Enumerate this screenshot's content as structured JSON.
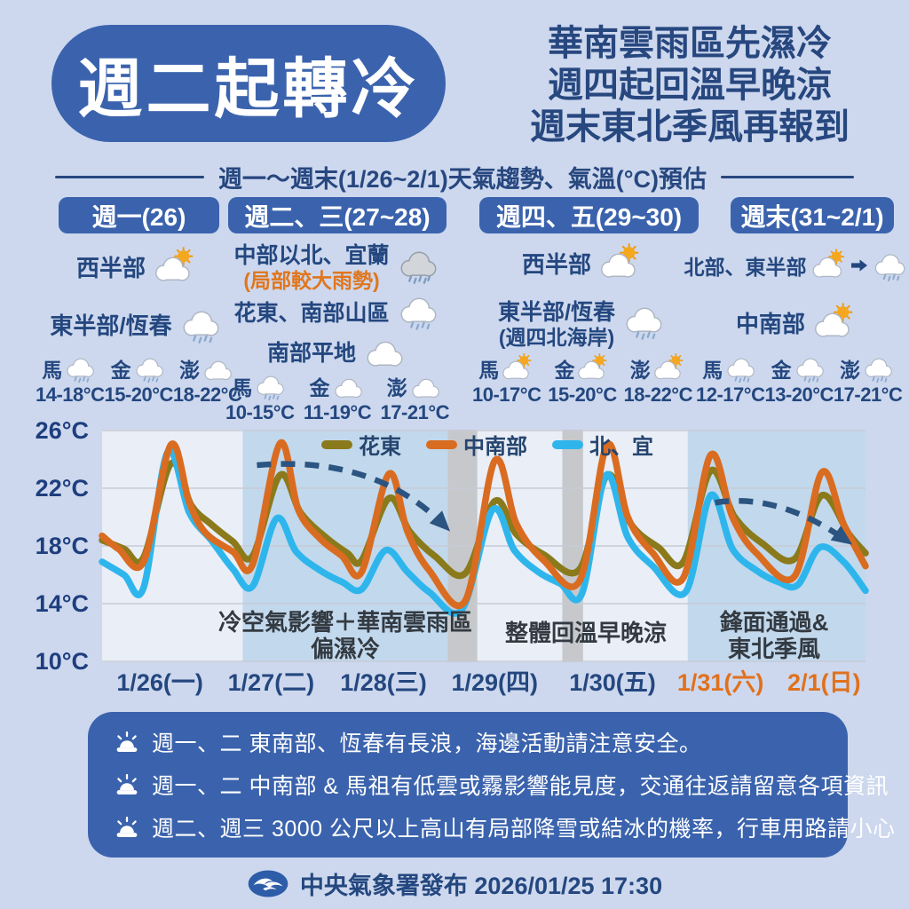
{
  "header": {
    "title": "週二起轉冷",
    "headline_lines": [
      "華南雲雨區先濕冷",
      "週四起回溫早晚涼",
      "週末東北季風再報到"
    ],
    "subtitle": "週一～週末(1/26~2/1)天氣趨勢、氣溫(°C)預估"
  },
  "columns": [
    {
      "header": "週一(26)",
      "rows": [
        {
          "label": "西半部",
          "icon": "sun-cloud-icon"
        },
        {
          "label": "東半部/恆春",
          "icon": "cloud-rain-icon"
        }
      ],
      "islands": [
        {
          "name": "馬",
          "icon": "cloud-rain-icon",
          "temp": "14-18°C"
        },
        {
          "name": "金",
          "icon": "cloud-rain-icon",
          "temp": "15-20°C"
        },
        {
          "name": "澎",
          "icon": "cloud-icon",
          "temp": "18-22°C"
        }
      ]
    },
    {
      "header": "週二、三(27~28)",
      "rows": [
        {
          "label": "中部以北、宜蘭",
          "sublabel": "(局部較大雨勢)",
          "sublabel_color": "#e0761d",
          "icon": "cloud-heavy-rain-icon"
        },
        {
          "label": "花東、南部山區",
          "icon": "cloud-rain-icon"
        },
        {
          "label": "南部平地",
          "icon": "cloud-icon"
        }
      ],
      "islands": [
        {
          "name": "馬",
          "icon": "cloud-rain-icon",
          "temp": "10-15°C"
        },
        {
          "name": "金",
          "icon": "cloud-icon",
          "temp": "11-19°C"
        },
        {
          "name": "澎",
          "icon": "cloud-icon",
          "temp": "17-21°C"
        }
      ]
    },
    {
      "header": "週四、五(29~30)",
      "rows": [
        {
          "label": "西半部",
          "icon": "sun-cloud-icon"
        },
        {
          "label": "東半部/恆春",
          "sublabel": "(週四北海岸)",
          "sublabel_color": "#24477f",
          "icon": "cloud-rain-icon"
        }
      ],
      "islands": [
        {
          "name": "馬",
          "icon": "sun-cloud-icon",
          "temp": "10-17°C"
        },
        {
          "name": "金",
          "icon": "sun-cloud-icon",
          "temp": "15-20°C"
        },
        {
          "name": "澎",
          "icon": "sun-cloud-icon",
          "temp": "18-22°C"
        }
      ]
    },
    {
      "header": "週末(31~2/1)",
      "rows": [
        {
          "label": "北部、東半部",
          "icon": "sun-cloud-icon",
          "icon2": "cloud-rain-icon"
        },
        {
          "label": "中南部",
          "icon": "sun-cloud-icon"
        }
      ],
      "islands": [
        {
          "name": "馬",
          "icon": "cloud-rain-icon",
          "temp": "12-17°C"
        },
        {
          "name": "金",
          "icon": "cloud-rain-icon",
          "temp": "13-20°C"
        },
        {
          "name": "澎",
          "icon": "cloud-rain-icon",
          "temp": "17-21°C"
        }
      ]
    }
  ],
  "chart_data": {
    "type": "line",
    "x_unit": "days (1/26 00:00 = 0)",
    "xlim": [
      0,
      7
    ],
    "ylim": [
      10,
      26
    ],
    "grid": true,
    "legend_position": "top-inside",
    "y_ticks": [
      {
        "label": "26°C",
        "value": 26
      },
      {
        "label": "22°C",
        "value": 22
      },
      {
        "label": "18°C",
        "value": 18
      },
      {
        "label": "14°C",
        "value": 14
      },
      {
        "label": "10°C",
        "value": 10
      }
    ],
    "x_ticks": [
      {
        "label": "1/26(一)",
        "day": 0.53,
        "color": "#24477f"
      },
      {
        "label": "1/27(二)",
        "day": 1.55,
        "color": "#24477f"
      },
      {
        "label": "1/28(三)",
        "day": 2.58,
        "color": "#24477f"
      },
      {
        "label": "1/29(四)",
        "day": 3.6,
        "color": "#24477f"
      },
      {
        "label": "1/30(五)",
        "day": 4.68,
        "color": "#24477f"
      },
      {
        "label": "1/31(六)",
        "day": 5.67,
        "color": "#e0711c"
      },
      {
        "label": "2/1(日)",
        "day": 6.62,
        "color": "#e0711c"
      }
    ],
    "series": [
      {
        "name": "花東",
        "color": "#8b7a1b",
        "points": [
          [
            0,
            18.4
          ],
          [
            0.2,
            17.8
          ],
          [
            0.38,
            17.2
          ],
          [
            0.63,
            23.7
          ],
          [
            0.82,
            20.8
          ],
          [
            1.0,
            19.5
          ],
          [
            1.2,
            18.3
          ],
          [
            1.38,
            17.3
          ],
          [
            1.63,
            22.9
          ],
          [
            1.82,
            20.3
          ],
          [
            2.05,
            18.6
          ],
          [
            2.25,
            17.5
          ],
          [
            2.38,
            17.0
          ],
          [
            2.63,
            21.3
          ],
          [
            2.82,
            19.0
          ],
          [
            3.05,
            17.3
          ],
          [
            3.33,
            16.1
          ],
          [
            3.6,
            21.1
          ],
          [
            3.8,
            18.8
          ],
          [
            4.05,
            17.4
          ],
          [
            4.38,
            16.4
          ],
          [
            4.63,
            22.9
          ],
          [
            4.85,
            19.5
          ],
          [
            5.1,
            17.9
          ],
          [
            5.33,
            16.9
          ],
          [
            5.58,
            23.2
          ],
          [
            5.8,
            20.0
          ],
          [
            6.05,
            18.2
          ],
          [
            6.35,
            17.1
          ],
          [
            6.6,
            21.5
          ],
          [
            6.85,
            18.8
          ],
          [
            7,
            17.5
          ]
        ]
      },
      {
        "name": "中南部",
        "color": "#d96c21",
        "points": [
          [
            0,
            18.7
          ],
          [
            0.15,
            17.8
          ],
          [
            0.38,
            16.9
          ],
          [
            0.63,
            25.0
          ],
          [
            0.8,
            21.0
          ],
          [
            0.95,
            18.9
          ],
          [
            1.2,
            17.6
          ],
          [
            1.38,
            16.7
          ],
          [
            1.63,
            25.1
          ],
          [
            1.8,
            20.5
          ],
          [
            2.0,
            18.5
          ],
          [
            2.2,
            17.3
          ],
          [
            2.38,
            16.2
          ],
          [
            2.63,
            23.0
          ],
          [
            2.8,
            19.0
          ],
          [
            3.0,
            16.3
          ],
          [
            3.33,
            14.2
          ],
          [
            3.6,
            23.9
          ],
          [
            3.8,
            19.5
          ],
          [
            4.05,
            17.0
          ],
          [
            4.38,
            15.6
          ],
          [
            4.63,
            25.0
          ],
          [
            4.82,
            20.0
          ],
          [
            5.05,
            17.5
          ],
          [
            5.33,
            15.8
          ],
          [
            5.58,
            24.3
          ],
          [
            5.78,
            20.0
          ],
          [
            6.0,
            17.5
          ],
          [
            6.35,
            15.9
          ],
          [
            6.6,
            23.1
          ],
          [
            6.8,
            19.5
          ],
          [
            7,
            16.6
          ]
        ]
      },
      {
        "name": "北、宜",
        "color": "#2eb6ec",
        "points": [
          [
            0,
            16.9
          ],
          [
            0.2,
            16.0
          ],
          [
            0.38,
            15.1
          ],
          [
            0.6,
            24.5
          ],
          [
            0.8,
            20.3
          ],
          [
            1.0,
            18.4
          ],
          [
            1.2,
            16.4
          ],
          [
            1.38,
            15.2
          ],
          [
            1.6,
            19.9
          ],
          [
            1.78,
            17.6
          ],
          [
            2.0,
            16.3
          ],
          [
            2.2,
            15.5
          ],
          [
            2.38,
            15.0
          ],
          [
            2.6,
            17.7
          ],
          [
            2.8,
            16.2
          ],
          [
            3.0,
            14.8
          ],
          [
            3.3,
            13.6
          ],
          [
            3.58,
            20.5
          ],
          [
            3.78,
            17.7
          ],
          [
            4.0,
            16.2
          ],
          [
            4.2,
            15.4
          ],
          [
            4.4,
            14.7
          ],
          [
            4.62,
            22.9
          ],
          [
            4.82,
            18.6
          ],
          [
            5.05,
            16.6
          ],
          [
            5.35,
            14.8
          ],
          [
            5.58,
            21.5
          ],
          [
            5.78,
            17.8
          ],
          [
            6.0,
            16.3
          ],
          [
            6.2,
            15.5
          ],
          [
            6.38,
            15.3
          ],
          [
            6.58,
            17.9
          ],
          [
            6.8,
            16.9
          ],
          [
            7,
            14.9
          ]
        ]
      }
    ],
    "regions": [
      {
        "from": 1.29,
        "to": 3.17,
        "color": "#c2d8ec"
      },
      {
        "from": 3.17,
        "to": 3.44,
        "color": "#c6c8cb"
      },
      {
        "from": 4.22,
        "to": 4.41,
        "color": "#c6c8cb"
      },
      {
        "from": 5.37,
        "to": 7.0,
        "color": "#c2d8ec"
      }
    ],
    "annotations": [
      {
        "lines": [
          "冷空氣影響＋華南雲雨區",
          "偏濕冷"
        ]
      },
      {
        "lines": [
          "整體回溫早晚涼"
        ]
      },
      {
        "lines": [
          "鋒面通過&",
          "東北季風"
        ]
      }
    ],
    "arrows": [
      {
        "from": [
          1.42,
          23.6
        ],
        "ctrl": [
          2.5,
          24.3
        ],
        "to": [
          3.14,
          19.4
        ]
      },
      {
        "from": [
          5.62,
          21.0
        ],
        "ctrl": [
          6.2,
          21.7
        ],
        "to": [
          6.82,
          18.4
        ]
      }
    ]
  },
  "notes": {
    "items": [
      "週一、二 東南部、恆春有長浪，海邊活動請注意安全。",
      "週一、二 中南部 & 馬祖有低雲或霧影響能見度，交通往返請留意各項資訊",
      "週二、週三 3000 公尺以上高山有局部降雪或結冰的機率，行車用路請小心"
    ]
  },
  "footer": {
    "text": "中央氣象署發布 2026/01/25 17:30"
  }
}
